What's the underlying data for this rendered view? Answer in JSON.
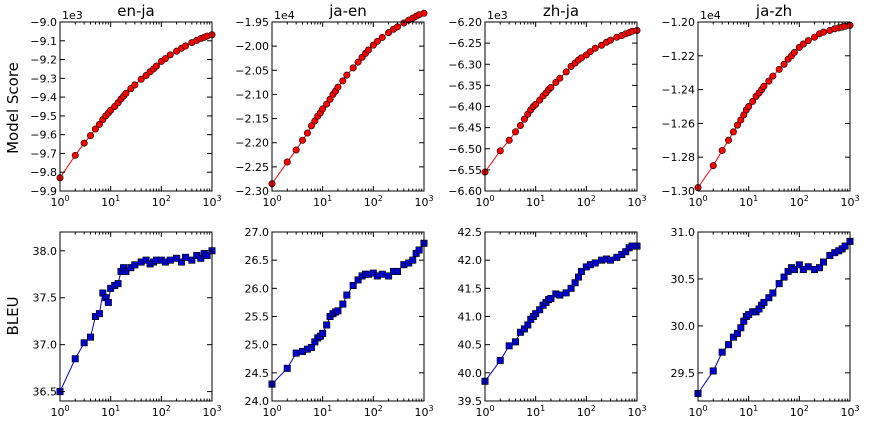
{
  "figure": {
    "row_labels": [
      "Model Score",
      "BLEU"
    ]
  },
  "chart_data": [
    {
      "type": "line",
      "row": 0,
      "col": 0,
      "title": "en-ja",
      "ylabel": "Model Score",
      "xscale": "log",
      "xlim": [
        1,
        1000
      ],
      "ylim": [
        -9.9,
        -9.0
      ],
      "multiplier": "1e3",
      "xticks": [
        "10^0",
        "10^1",
        "10^2",
        "10^3"
      ],
      "yticks": [
        "-9.9",
        "-9.8",
        "-9.7",
        "-9.6",
        "-9.5",
        "-9.4",
        "-9.3",
        "-9.2",
        "-9.1",
        "-9.0"
      ],
      "series": [
        {
          "color": "#ff0000",
          "marker": "circle",
          "x": [
            1,
            2,
            3,
            4,
            5,
            6,
            7,
            8,
            9,
            10,
            12,
            14,
            16,
            18,
            20,
            25,
            30,
            40,
            50,
            60,
            70,
            80,
            100,
            120,
            150,
            200,
            250,
            300,
            400,
            500,
            600,
            700,
            800,
            1000
          ],
          "y": [
            -9.83,
            -9.71,
            -9.645,
            -9.605,
            -9.57,
            -9.545,
            -9.52,
            -9.5,
            -9.485,
            -9.47,
            -9.45,
            -9.43,
            -9.41,
            -9.395,
            -9.38,
            -9.355,
            -9.335,
            -9.305,
            -9.285,
            -9.265,
            -9.25,
            -9.235,
            -9.21,
            -9.195,
            -9.175,
            -9.155,
            -9.14,
            -9.128,
            -9.11,
            -9.098,
            -9.088,
            -9.082,
            -9.075,
            -9.068
          ]
        }
      ]
    },
    {
      "type": "line",
      "row": 0,
      "col": 1,
      "title": "ja-en",
      "ylabel": "",
      "xscale": "log",
      "xlim": [
        1,
        1000
      ],
      "ylim": [
        -2.3,
        -1.95
      ],
      "multiplier": "1e4",
      "xticks": [
        "10^0",
        "10^1",
        "10^2",
        "10^3"
      ],
      "yticks": [
        "-2.30",
        "-2.25",
        "-2.20",
        "-2.15",
        "-2.10",
        "-2.05",
        "-2.00",
        "-1.95"
      ],
      "series": [
        {
          "color": "#ff0000",
          "marker": "circle",
          "x": [
            1,
            2,
            3,
            4,
            5,
            6,
            7,
            8,
            9,
            10,
            12,
            14,
            16,
            18,
            20,
            25,
            30,
            40,
            50,
            60,
            70,
            80,
            100,
            120,
            150,
            200,
            250,
            300,
            400,
            500,
            600,
            700,
            800,
            1000
          ],
          "y": [
            -2.285,
            -2.24,
            -2.215,
            -2.195,
            -2.18,
            -2.165,
            -2.155,
            -2.145,
            -2.138,
            -2.13,
            -2.12,
            -2.11,
            -2.1,
            -2.093,
            -2.085,
            -2.072,
            -2.06,
            -2.045,
            -2.033,
            -2.023,
            -2.015,
            -2.008,
            -1.998,
            -1.99,
            -1.982,
            -1.972,
            -1.965,
            -1.96,
            -1.952,
            -1.946,
            -1.942,
            -1.938,
            -1.935,
            -1.932
          ]
        }
      ]
    },
    {
      "type": "line",
      "row": 0,
      "col": 2,
      "title": "zh-ja",
      "ylabel": "",
      "xscale": "log",
      "xlim": [
        1,
        1000
      ],
      "ylim": [
        -6.6,
        -6.2
      ],
      "multiplier": "1e3",
      "xticks": [
        "10^0",
        "10^1",
        "10^2",
        "10^3"
      ],
      "yticks": [
        "-6.60",
        "-6.55",
        "-6.50",
        "-6.45",
        "-6.40",
        "-6.35",
        "-6.30",
        "-6.25",
        "-6.20"
      ],
      "series": [
        {
          "color": "#ff0000",
          "marker": "circle",
          "x": [
            1,
            2,
            3,
            4,
            5,
            6,
            7,
            8,
            9,
            10,
            12,
            14,
            16,
            18,
            20,
            25,
            30,
            40,
            50,
            60,
            70,
            80,
            100,
            120,
            150,
            200,
            250,
            300,
            400,
            500,
            600,
            700,
            800,
            1000
          ],
          "y": [
            -6.555,
            -6.505,
            -6.48,
            -6.46,
            -6.445,
            -6.43,
            -6.418,
            -6.408,
            -6.4,
            -6.395,
            -6.385,
            -6.375,
            -6.368,
            -6.36,
            -6.355,
            -6.343,
            -6.333,
            -6.318,
            -6.305,
            -6.297,
            -6.29,
            -6.285,
            -6.278,
            -6.27,
            -6.262,
            -6.255,
            -6.248,
            -6.243,
            -6.236,
            -6.232,
            -6.228,
            -6.225,
            -6.222,
            -6.22
          ]
        }
      ]
    },
    {
      "type": "line",
      "row": 0,
      "col": 3,
      "title": "ja-zh",
      "ylabel": "",
      "xscale": "log",
      "xlim": [
        1,
        1000
      ],
      "ylim": [
        -1.3,
        -1.2
      ],
      "multiplier": "1e4",
      "xticks": [
        "10^0",
        "10^1",
        "10^2",
        "10^3"
      ],
      "yticks": [
        "-1.30",
        "-1.28",
        "-1.26",
        "-1.24",
        "-1.22",
        "-1.20"
      ],
      "series": [
        {
          "color": "#ff0000",
          "marker": "circle",
          "x": [
            1,
            2,
            3,
            4,
            5,
            6,
            7,
            8,
            9,
            10,
            12,
            14,
            16,
            18,
            20,
            25,
            30,
            40,
            50,
            60,
            70,
            80,
            100,
            120,
            150,
            200,
            250,
            300,
            400,
            500,
            600,
            700,
            800,
            1000
          ],
          "y": [
            -1.298,
            -1.285,
            -1.276,
            -1.27,
            -1.265,
            -1.261,
            -1.258,
            -1.255,
            -1.252,
            -1.25,
            -1.247,
            -1.244,
            -1.242,
            -1.24,
            -1.238,
            -1.235,
            -1.232,
            -1.228,
            -1.225,
            -1.222,
            -1.22,
            -1.218,
            -1.215,
            -1.213,
            -1.211,
            -1.209,
            -1.207,
            -1.206,
            -1.205,
            -1.204,
            -1.2035,
            -1.203,
            -1.2025,
            -1.202
          ]
        }
      ]
    },
    {
      "type": "line",
      "row": 1,
      "col": 0,
      "title": "",
      "ylabel": "BLEU",
      "xscale": "log",
      "xlim": [
        1,
        1000
      ],
      "ylim": [
        36.4,
        38.2
      ],
      "xticks": [
        "10^0",
        "10^1",
        "10^2",
        "10^3"
      ],
      "yticks": [
        "36.5",
        "37.0",
        "37.5",
        "38.0"
      ],
      "series": [
        {
          "color": "#0000cc",
          "marker": "square",
          "x": [
            1,
            2,
            3,
            4,
            5,
            6,
            7,
            8,
            9,
            10,
            12,
            14,
            16,
            18,
            20,
            25,
            30,
            40,
            50,
            60,
            70,
            80,
            100,
            120,
            150,
            200,
            250,
            300,
            400,
            500,
            600,
            700,
            800,
            1000
          ],
          "y": [
            36.5,
            36.85,
            37.02,
            37.08,
            37.3,
            37.33,
            37.55,
            37.5,
            37.45,
            37.6,
            37.63,
            37.65,
            37.78,
            37.82,
            37.78,
            37.82,
            37.85,
            37.88,
            37.9,
            37.86,
            37.88,
            37.9,
            37.9,
            37.88,
            37.9,
            37.92,
            37.88,
            37.93,
            37.9,
            37.95,
            37.92,
            37.97,
            37.95,
            38.0
          ]
        }
      ]
    },
    {
      "type": "line",
      "row": 1,
      "col": 1,
      "title": "",
      "ylabel": "",
      "xscale": "log",
      "xlim": [
        1,
        1000
      ],
      "ylim": [
        24.0,
        27.0
      ],
      "xticks": [
        "10^0",
        "10^1",
        "10^2",
        "10^3"
      ],
      "yticks": [
        "24.0",
        "24.5",
        "25.0",
        "25.5",
        "26.0",
        "26.5",
        "27.0"
      ],
      "series": [
        {
          "color": "#0000cc",
          "marker": "square",
          "x": [
            1,
            2,
            3,
            4,
            5,
            6,
            7,
            8,
            9,
            10,
            12,
            14,
            16,
            18,
            20,
            25,
            30,
            40,
            50,
            60,
            70,
            80,
            100,
            120,
            150,
            200,
            250,
            300,
            400,
            500,
            600,
            700,
            800,
            1000
          ],
          "y": [
            24.3,
            24.58,
            24.85,
            24.88,
            24.92,
            24.95,
            25.05,
            25.12,
            25.15,
            25.2,
            25.35,
            25.5,
            25.55,
            25.58,
            25.6,
            25.72,
            25.88,
            26.05,
            26.15,
            26.22,
            26.25,
            26.25,
            26.27,
            26.22,
            26.25,
            26.22,
            26.3,
            26.3,
            26.42,
            26.45,
            26.5,
            26.62,
            26.68,
            26.8
          ]
        }
      ]
    },
    {
      "type": "line",
      "row": 1,
      "col": 2,
      "title": "",
      "ylabel": "",
      "xscale": "log",
      "xlim": [
        1,
        1000
      ],
      "ylim": [
        39.5,
        42.5
      ],
      "xticks": [
        "10^0",
        "10^1",
        "10^2",
        "10^3"
      ],
      "yticks": [
        "39.5",
        "40.0",
        "40.5",
        "41.0",
        "41.5",
        "42.0",
        "42.5"
      ],
      "series": [
        {
          "color": "#0000cc",
          "marker": "square",
          "x": [
            1,
            2,
            3,
            4,
            5,
            6,
            7,
            8,
            9,
            10,
            12,
            14,
            16,
            18,
            20,
            25,
            30,
            40,
            50,
            60,
            70,
            80,
            100,
            120,
            150,
            200,
            250,
            300,
            400,
            500,
            600,
            700,
            800,
            1000
          ],
          "y": [
            39.85,
            40.22,
            40.48,
            40.55,
            40.72,
            40.78,
            40.85,
            40.95,
            41.0,
            41.05,
            41.12,
            41.2,
            41.25,
            41.3,
            41.32,
            41.4,
            41.38,
            41.42,
            41.5,
            41.6,
            41.7,
            41.8,
            41.88,
            41.92,
            41.95,
            42.0,
            42.02,
            42.0,
            42.05,
            42.1,
            42.15,
            42.22,
            42.25,
            42.25
          ]
        }
      ]
    },
    {
      "type": "line",
      "row": 1,
      "col": 3,
      "title": "",
      "ylabel": "",
      "xscale": "log",
      "xlim": [
        1,
        1000
      ],
      "ylim": [
        29.2,
        31.0
      ],
      "xticks": [
        "10^0",
        "10^1",
        "10^2",
        "10^3"
      ],
      "yticks": [
        "29.5",
        "30.0",
        "30.5",
        "31.0"
      ],
      "series": [
        {
          "color": "#0000cc",
          "marker": "square",
          "x": [
            1,
            2,
            3,
            4,
            5,
            6,
            7,
            8,
            9,
            10,
            12,
            14,
            16,
            18,
            20,
            25,
            30,
            40,
            50,
            60,
            70,
            80,
            100,
            120,
            150,
            200,
            250,
            300,
            400,
            500,
            600,
            700,
            800,
            1000
          ],
          "y": [
            29.28,
            29.52,
            29.72,
            29.8,
            29.88,
            29.92,
            29.98,
            30.05,
            30.1,
            30.12,
            30.15,
            30.15,
            30.18,
            30.22,
            30.25,
            30.3,
            30.35,
            30.45,
            30.52,
            30.58,
            30.62,
            30.6,
            30.65,
            30.6,
            30.63,
            30.6,
            30.62,
            30.68,
            30.75,
            30.78,
            30.8,
            30.82,
            30.85,
            30.9
          ]
        }
      ]
    }
  ]
}
